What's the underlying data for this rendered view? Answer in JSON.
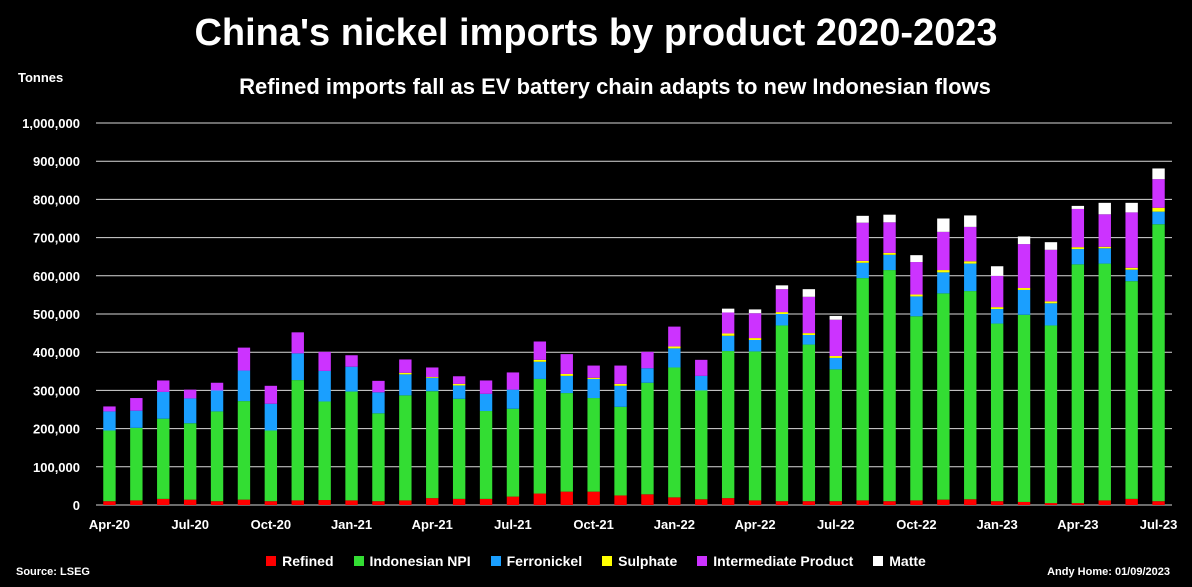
{
  "chart_data": {
    "type": "bar",
    "stacked": true,
    "title": "China's nickel imports by product 2020-2023",
    "subtitle": "Refined imports fall as EV battery chain adapts to new Indonesian flows",
    "ylabel": "Tonnes",
    "ylim": [
      0,
      1000000
    ],
    "yticks": [
      "0",
      "100,000",
      "200,000",
      "300,000",
      "400,000",
      "500,000",
      "600,000",
      "700,000",
      "800,000",
      "900,000",
      "1,000,000"
    ],
    "categories": [
      "Apr-20",
      "May-20",
      "Jun-20",
      "Jul-20",
      "Aug-20",
      "Sep-20",
      "Oct-20",
      "Nov-20",
      "Dec-20",
      "Jan-21",
      "Feb-21",
      "Mar-21",
      "Apr-21",
      "May-21",
      "Jun-21",
      "Jul-21",
      "Aug-21",
      "Sep-21",
      "Oct-21",
      "Nov-21",
      "Dec-21",
      "Jan-22",
      "Feb-22",
      "Mar-22",
      "Apr-22",
      "May-22",
      "Jun-22",
      "Jul-22",
      "Aug-22",
      "Sep-22",
      "Oct-22",
      "Nov-22",
      "Dec-22",
      "Jan-23",
      "Feb-23",
      "Mar-23",
      "Apr-23",
      "May-23",
      "Jun-23",
      "Jul-23"
    ],
    "xticks": [
      "Apr-20",
      "Jul-20",
      "Oct-20",
      "Jan-21",
      "Apr-21",
      "Jul-21",
      "Oct-21",
      "Jan-22",
      "Apr-22",
      "Jul-22",
      "Oct-22",
      "Jan-23",
      "Apr-23",
      "Jul-23"
    ],
    "series": [
      {
        "name": "Refined",
        "color": "#ff0000",
        "values": [
          10000,
          12000,
          16000,
          14000,
          10000,
          14000,
          10000,
          12000,
          13000,
          12000,
          10000,
          12000,
          18000,
          16000,
          16000,
          22000,
          30000,
          35000,
          35000,
          25000,
          28000,
          20000,
          15000,
          18000,
          12000,
          10000,
          10000,
          10000,
          12000,
          10000,
          12000,
          14000,
          15000,
          10000,
          8000,
          5000,
          5000,
          12000,
          16000,
          10000
        ]
      },
      {
        "name": "Indonesian NPI",
        "color": "#33dd33",
        "values": [
          185000,
          190000,
          210000,
          200000,
          235000,
          258000,
          185000,
          315000,
          258000,
          285000,
          230000,
          275000,
          280000,
          262000,
          230000,
          230000,
          300000,
          258000,
          245000,
          232000,
          292000,
          340000,
          285000,
          385000,
          390000,
          460000,
          410000,
          345000,
          582000,
          605000,
          482000,
          540000,
          545000,
          465000,
          490000,
          465000,
          625000,
          620000,
          570000,
          725000
        ]
      },
      {
        "name": "Ferronickel",
        "color": "#1a9fff",
        "values": [
          50000,
          45000,
          70000,
          65000,
          55000,
          80000,
          70000,
          70000,
          80000,
          65000,
          55000,
          55000,
          35000,
          35000,
          45000,
          50000,
          45000,
          45000,
          50000,
          55000,
          38000,
          50000,
          38000,
          40000,
          30000,
          30000,
          25000,
          30000,
          40000,
          40000,
          52000,
          55000,
          72000,
          38000,
          65000,
          58000,
          40000,
          40000,
          30000,
          33000
        ]
      },
      {
        "name": "Sulphate",
        "color": "#ffff00",
        "values": [
          0,
          0,
          0,
          0,
          0,
          0,
          0,
          0,
          0,
          0,
          0,
          4000,
          2000,
          4000,
          0,
          0,
          5000,
          5000,
          3000,
          5000,
          0,
          5000,
          0,
          6000,
          5000,
          5000,
          5000,
          5000,
          5000,
          5000,
          5000,
          6000,
          6000,
          5000,
          5000,
          5000,
          5000,
          4000,
          5000,
          10000
        ]
      },
      {
        "name": "Intermediate Product",
        "color": "#cc33ff",
        "values": [
          13000,
          33000,
          30000,
          23000,
          20000,
          60000,
          47000,
          55000,
          50000,
          30000,
          30000,
          35000,
          25000,
          20000,
          35000,
          45000,
          48000,
          52000,
          32000,
          48000,
          43000,
          52000,
          42000,
          55000,
          65000,
          60000,
          95000,
          95000,
          100000,
          80000,
          85000,
          100000,
          90000,
          82000,
          115000,
          135000,
          100000,
          85000,
          145000,
          75000
        ]
      },
      {
        "name": "Matte",
        "color": "#ffffff",
        "values": [
          0,
          0,
          0,
          0,
          0,
          0,
          0,
          0,
          0,
          0,
          0,
          0,
          0,
          0,
          0,
          0,
          0,
          0,
          0,
          0,
          0,
          0,
          0,
          10000,
          10000,
          10000,
          20000,
          10000,
          18000,
          20000,
          18000,
          35000,
          30000,
          25000,
          20000,
          20000,
          8000,
          30000,
          25000,
          28000
        ]
      }
    ]
  },
  "source": "Source: LSEG",
  "credit": "Andy Home: 01/09/2023"
}
